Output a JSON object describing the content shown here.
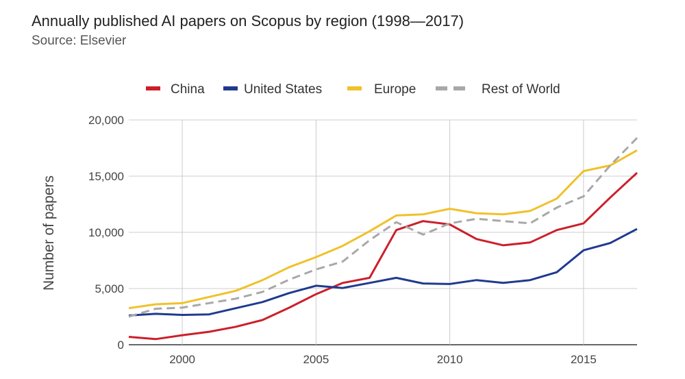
{
  "chart_data": {
    "type": "line",
    "title": "Annually published AI papers on Scopus by region (1998—2017)",
    "subtitle": "Source: Elsevier",
    "xlabel": "",
    "ylabel": "Number of papers",
    "x": [
      1998,
      1999,
      2000,
      2001,
      2002,
      2003,
      2004,
      2005,
      2006,
      2007,
      2008,
      2009,
      2010,
      2011,
      2012,
      2013,
      2014,
      2015,
      2016,
      2017
    ],
    "xlim": [
      1998,
      2017
    ],
    "ylim": [
      0,
      20000
    ],
    "xticks": [
      2000,
      2005,
      2010,
      2015
    ],
    "xtick_labels": [
      "2000",
      "2005",
      "2010",
      "2015"
    ],
    "yticks": [
      0,
      5000,
      10000,
      15000,
      20000
    ],
    "ytick_labels": [
      "0",
      "5,000",
      "10,000",
      "15,000",
      "20,000"
    ],
    "grid": true,
    "legend_position": "top",
    "series": [
      {
        "name": "China",
        "color": "#cc1f2a",
        "dash": false,
        "values": [
          700,
          500,
          850,
          1150,
          1600,
          2200,
          3300,
          4500,
          5500,
          5950,
          10200,
          11000,
          10700,
          9400,
          8850,
          9100,
          10200,
          10800,
          13100,
          15300
        ]
      },
      {
        "name": "United States",
        "color": "#1f3a8f",
        "dash": false,
        "values": [
          2600,
          2750,
          2650,
          2700,
          3250,
          3800,
          4600,
          5250,
          5050,
          5500,
          5950,
          5450,
          5400,
          5750,
          5500,
          5750,
          6450,
          8400,
          9050,
          10300
        ]
      },
      {
        "name": "Europe",
        "color": "#f0c12a",
        "dash": false,
        "values": [
          3250,
          3600,
          3700,
          4250,
          4800,
          5750,
          6900,
          7800,
          8800,
          10100,
          11500,
          11600,
          12100,
          11700,
          11600,
          11900,
          13000,
          15450,
          15950,
          17300
        ]
      },
      {
        "name": "Rest of World",
        "color": "#a8a8a8",
        "dash": true,
        "values": [
          2500,
          3200,
          3300,
          3700,
          4100,
          4700,
          5800,
          6700,
          7400,
          9300,
          10900,
          9800,
          10800,
          11200,
          11000,
          10800,
          12200,
          13200,
          15950,
          18400
        ]
      }
    ]
  }
}
